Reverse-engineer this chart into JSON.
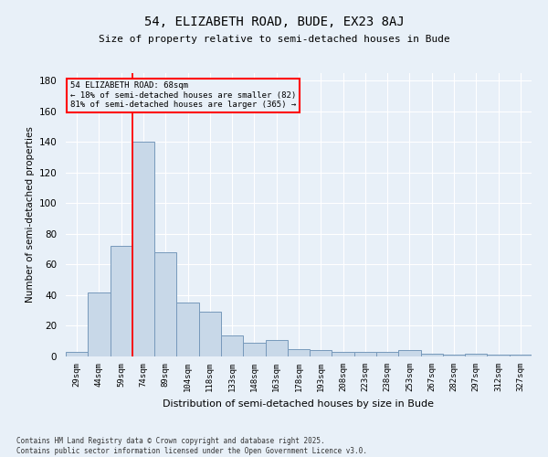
{
  "title": "54, ELIZABETH ROAD, BUDE, EX23 8AJ",
  "subtitle": "Size of property relative to semi-detached houses in Bude",
  "xlabel": "Distribution of semi-detached houses by size in Bude",
  "ylabel": "Number of semi-detached properties",
  "categories": [
    "29sqm",
    "44sqm",
    "59sqm",
    "74sqm",
    "89sqm",
    "104sqm",
    "118sqm",
    "133sqm",
    "148sqm",
    "163sqm",
    "178sqm",
    "193sqm",
    "208sqm",
    "223sqm",
    "238sqm",
    "253sqm",
    "267sqm",
    "282sqm",
    "297sqm",
    "312sqm",
    "327sqm"
  ],
  "values": [
    3,
    42,
    72,
    140,
    68,
    35,
    29,
    14,
    9,
    11,
    5,
    4,
    3,
    3,
    3,
    4,
    2,
    1,
    2,
    1,
    1
  ],
  "bar_color": "#c8d8e8",
  "bar_edge_color": "#7799bb",
  "bar_linewidth": 0.7,
  "annotation_line1": "54 ELIZABETH ROAD: 68sqm",
  "annotation_line2": "← 18% of semi-detached houses are smaller (82)",
  "annotation_line3": "81% of semi-detached houses are larger (365) →",
  "ylim": [
    0,
    185
  ],
  "yticks": [
    0,
    20,
    40,
    60,
    80,
    100,
    120,
    140,
    160,
    180
  ],
  "bg_color": "#e8f0f8",
  "grid_color": "#ffffff",
  "footer_line1": "Contains HM Land Registry data © Crown copyright and database right 2025.",
  "footer_line2": "Contains public sector information licensed under the Open Government Licence v3.0."
}
